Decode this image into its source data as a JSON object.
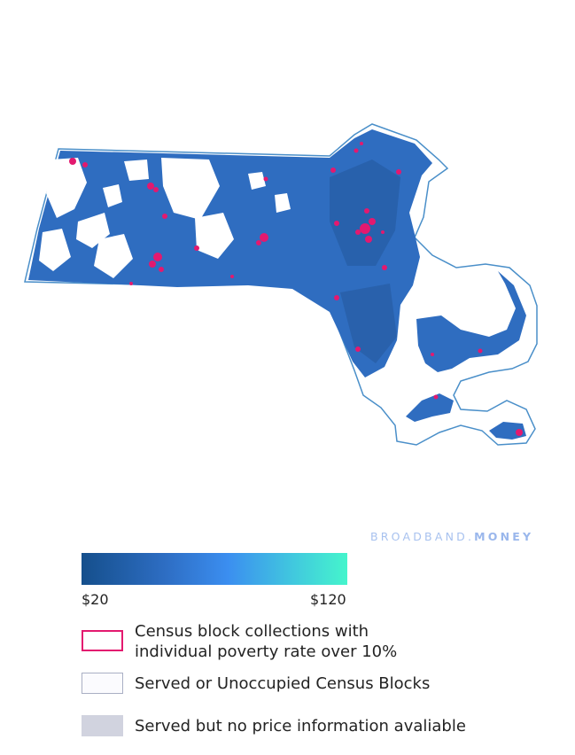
{
  "map": {
    "region": "Massachusetts",
    "colors": {
      "state_outline": "#4a8fc9",
      "price_fill_low": "#1b5a9e",
      "price_fill_mid": "#2f6dc0",
      "poverty_highlight": "#e3196f",
      "served_unoccupied": "#ffffff"
    }
  },
  "brand": {
    "part1": "BROADBAND.",
    "part2": "MONEY"
  },
  "scale": {
    "min_label": "$20",
    "max_label": "$120",
    "colors": [
      "#154f8c",
      "#2e6ec4",
      "#3b8ef0",
      "#41c9de",
      "#45f5cc"
    ]
  },
  "legend": {
    "poverty_line1": "Census block collections with",
    "poverty_line2": "individual poverty rate over 10%",
    "served": "Served or Unoccupied Census Blocks",
    "no_price": "Served but no price information avaliable"
  }
}
